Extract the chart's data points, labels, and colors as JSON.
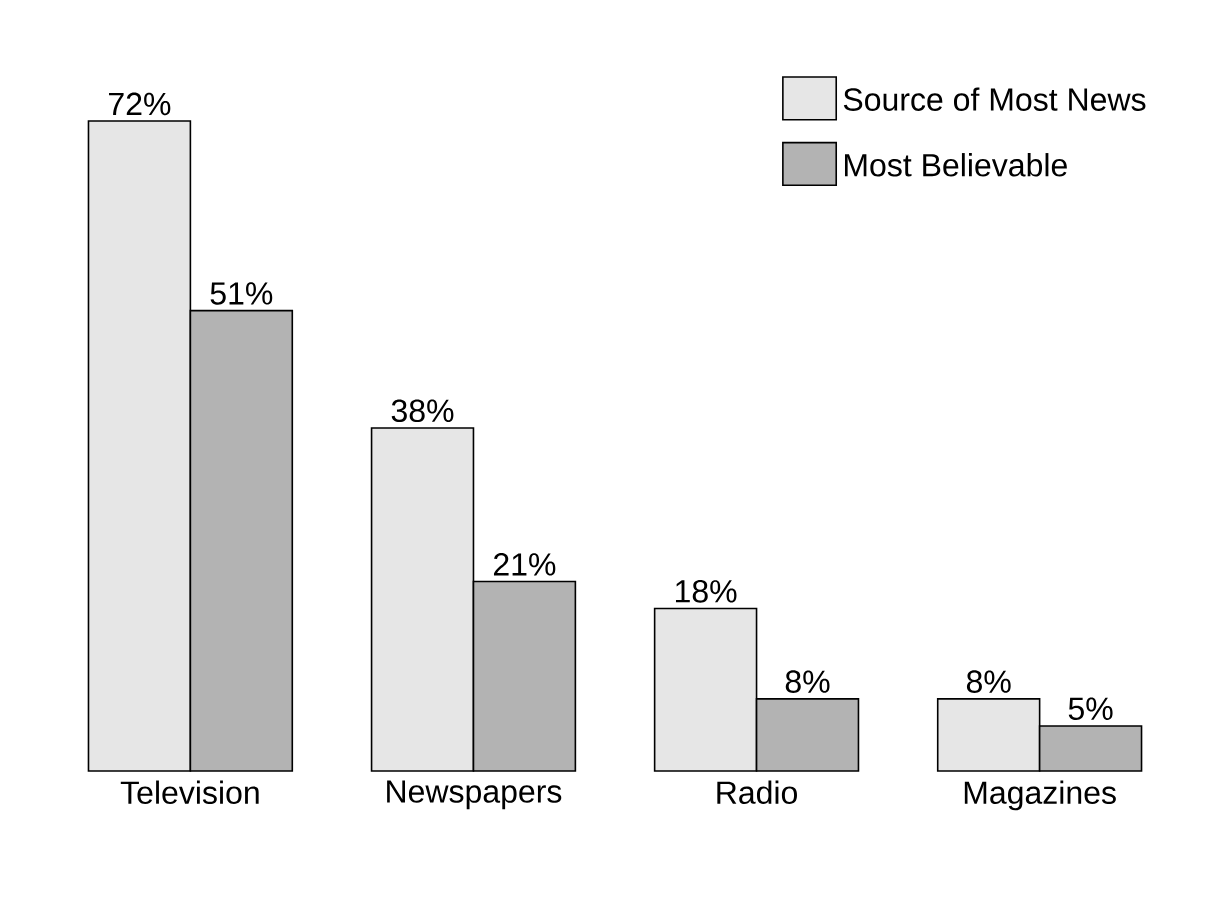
{
  "chart_data": {
    "type": "bar",
    "categories": [
      "Television",
      "Newspapers",
      "Radio",
      "Magazines"
    ],
    "series": [
      {
        "name": "Source of Most News",
        "color": "#e6e6e6",
        "values": [
          72,
          38,
          18,
          8
        ],
        "value_labels": [
          "72%",
          "38%",
          "18%",
          "8%"
        ]
      },
      {
        "name": "Most Believable",
        "color": "#b3b3b3",
        "values": [
          51,
          21,
          8,
          5
        ],
        "value_labels": [
          "51%",
          "21%",
          "8%",
          "5%"
        ]
      }
    ],
    "legend": "top right"
  }
}
